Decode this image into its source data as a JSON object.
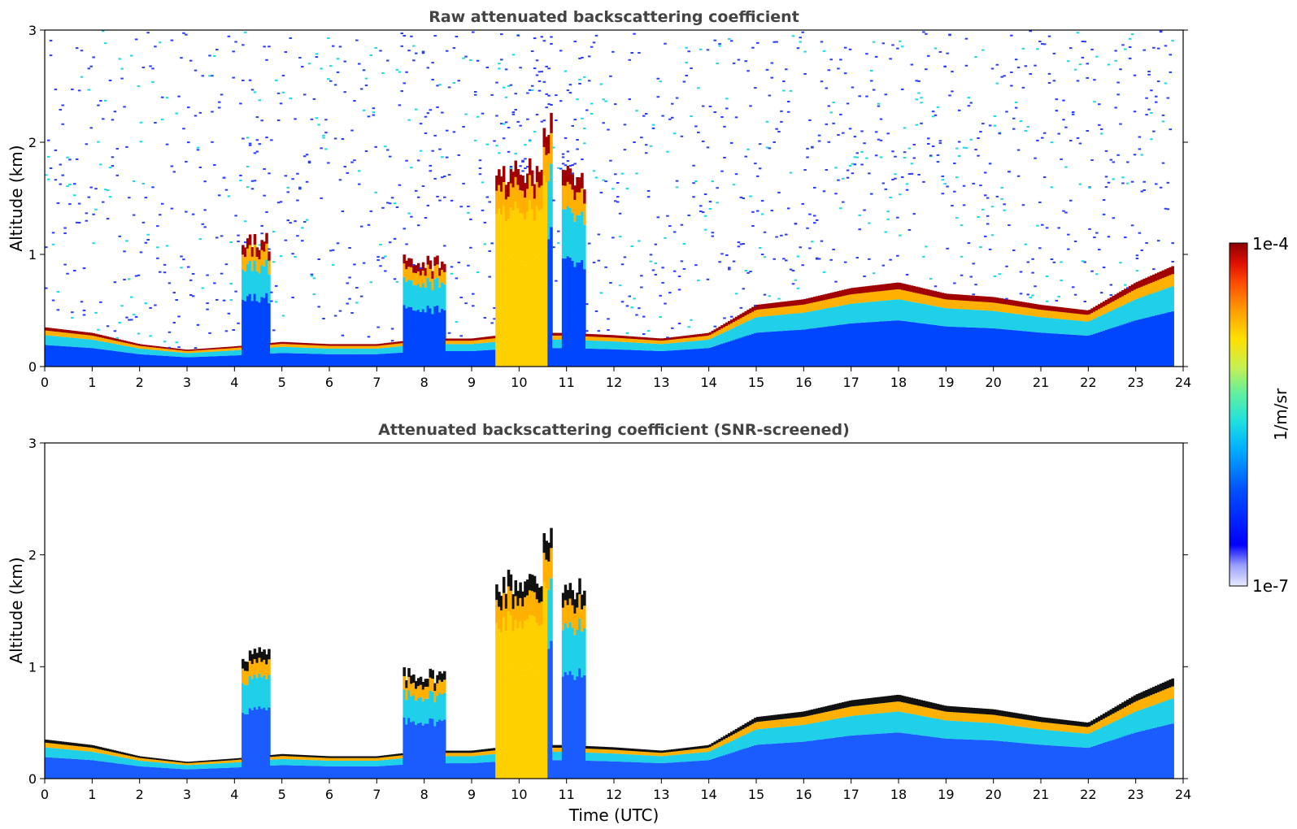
{
  "chart_data": [
    {
      "type": "heatmap",
      "title": "Raw attenuated backscattering coefficient",
      "xlabel": "",
      "ylabel": "Altitude (km)",
      "xlim": [
        0,
        24
      ],
      "ylim": [
        0,
        3
      ],
      "xticks": [
        0,
        1,
        2,
        3,
        4,
        5,
        6,
        7,
        8,
        9,
        10,
        11,
        12,
        13,
        14,
        15,
        16,
        17,
        18,
        19,
        20,
        21,
        22,
        23,
        24
      ],
      "yticks": [
        0,
        1,
        2,
        3
      ],
      "screened": false,
      "layer_top_km": [
        [
          0,
          0.35
        ],
        [
          1,
          0.3
        ],
        [
          2,
          0.2
        ],
        [
          3,
          0.15
        ],
        [
          4,
          0.18
        ],
        [
          5,
          0.22
        ],
        [
          6,
          0.2
        ],
        [
          7,
          0.2
        ],
        [
          8,
          0.25
        ],
        [
          9,
          0.25
        ],
        [
          10,
          0.3
        ],
        [
          11,
          0.3
        ],
        [
          12,
          0.28
        ],
        [
          13,
          0.25
        ],
        [
          14,
          0.3
        ],
        [
          15,
          0.55
        ],
        [
          16,
          0.6
        ],
        [
          17,
          0.7
        ],
        [
          18,
          0.75
        ],
        [
          19,
          0.65
        ],
        [
          20,
          0.62
        ],
        [
          21,
          0.55
        ],
        [
          22,
          0.5
        ],
        [
          23,
          0.75
        ],
        [
          23.8,
          0.9
        ]
      ],
      "features": [
        {
          "name": "convective plume",
          "x": [
            9.5,
            10.6
          ],
          "top_km": 1.9
        },
        {
          "name": "cloud",
          "x": [
            4.1,
            4.7
          ],
          "top_km": 1.2
        },
        {
          "name": "cloud",
          "x": [
            7.5,
            8.4
          ],
          "top_km": 1.0
        },
        {
          "name": "cloud",
          "x": [
            10.9,
            11.4
          ],
          "top_km": 1.8
        },
        {
          "name": "cloud",
          "x": [
            10.5,
            10.7
          ],
          "top_km": 2.4
        }
      ]
    },
    {
      "type": "heatmap",
      "title": "Attenuated backscattering coefficient (SNR-screened)",
      "xlabel": "Time (UTC)",
      "ylabel": "Altitude (km)",
      "xlim": [
        0,
        24
      ],
      "ylim": [
        0,
        3
      ],
      "xticks": [
        0,
        1,
        2,
        3,
        4,
        5,
        6,
        7,
        8,
        9,
        10,
        11,
        12,
        13,
        14,
        15,
        16,
        17,
        18,
        19,
        20,
        21,
        22,
        23,
        24
      ],
      "yticks": [
        0,
        1,
        2,
        3
      ],
      "screened": true,
      "layer_top_km": [
        [
          0,
          0.35
        ],
        [
          1,
          0.3
        ],
        [
          2,
          0.2
        ],
        [
          3,
          0.15
        ],
        [
          4,
          0.18
        ],
        [
          5,
          0.22
        ],
        [
          6,
          0.2
        ],
        [
          7,
          0.2
        ],
        [
          8,
          0.25
        ],
        [
          9,
          0.25
        ],
        [
          10,
          0.3
        ],
        [
          11,
          0.3
        ],
        [
          12,
          0.28
        ],
        [
          13,
          0.25
        ],
        [
          14,
          0.3
        ],
        [
          15,
          0.55
        ],
        [
          16,
          0.6
        ],
        [
          17,
          0.7
        ],
        [
          18,
          0.75
        ],
        [
          19,
          0.65
        ],
        [
          20,
          0.62
        ],
        [
          21,
          0.55
        ],
        [
          22,
          0.5
        ],
        [
          23,
          0.75
        ],
        [
          23.8,
          0.9
        ]
      ],
      "features": [
        {
          "name": "convective plume",
          "x": [
            9.5,
            10.6
          ],
          "top_km": 1.9
        },
        {
          "name": "cloud",
          "x": [
            4.1,
            4.7
          ],
          "top_km": 1.2
        },
        {
          "name": "cloud",
          "x": [
            7.5,
            8.4
          ],
          "top_km": 1.0
        },
        {
          "name": "cloud",
          "x": [
            10.9,
            11.4
          ],
          "top_km": 1.8
        },
        {
          "name": "cloud",
          "x": [
            10.5,
            10.7
          ],
          "top_km": 2.4
        }
      ]
    }
  ],
  "colorbar": {
    "max_label": "1e-4",
    "min_label": "1e-7",
    "unit_label": "1/m/sr",
    "colors": [
      "#e8eaff",
      "#c8ccff",
      "#9aa0ff",
      "#0000ff",
      "#0050ff",
      "#00b0ff",
      "#20e0e0",
      "#60f0a0",
      "#c8f050",
      "#ffe000",
      "#ffa000",
      "#ff5000",
      "#e01000",
      "#8b0000"
    ]
  },
  "palette": {
    "text": "#444444",
    "axis": "#000000"
  }
}
